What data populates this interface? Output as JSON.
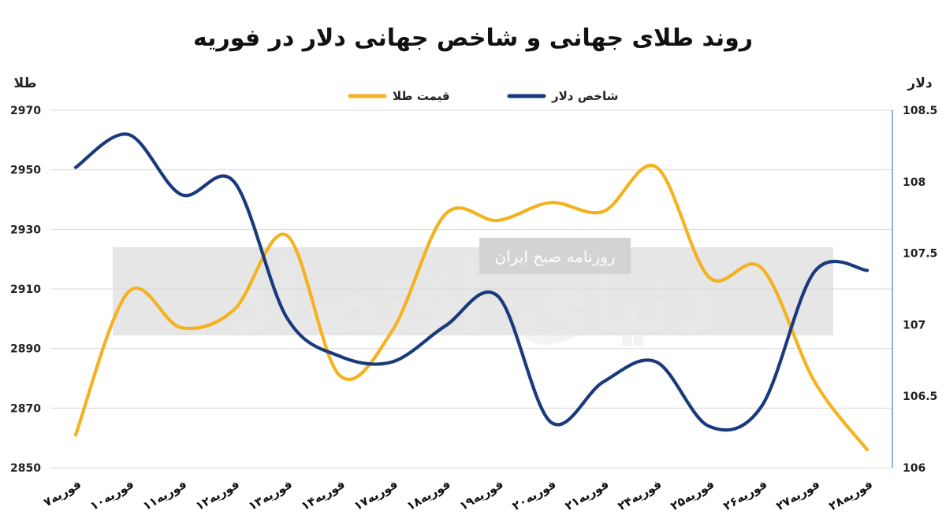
{
  "chart_data": {
    "type": "line",
    "title": "روند طلای جهانی و شاخص جهانی دلار در فوریه",
    "ylabel_left": "طلا",
    "ylabel_right": "دلار",
    "categories": [
      "۷فوریه",
      "۱۰فوریه",
      "۱۱فوریه",
      "۱۲فوریه",
      "۱۳فوریه",
      "۱۴فوریه",
      "۱۷فوریه",
      "۱۸فوریه",
      "۱۹فوریه",
      "۲۰فوریه",
      "۲۱فوریه",
      "۲۴فوریه",
      "۲۵فوریه",
      "۲۶فوریه",
      "۲۷فوریه",
      "۲۸فوریه"
    ],
    "y_left_ticks": [
      "2970",
      "2950",
      "2930",
      "2910",
      "2890",
      "2870",
      "2850"
    ],
    "y_right_ticks": [
      "108.5",
      "108",
      "107.5",
      "107",
      "106.5",
      "106"
    ],
    "y_left_range": [
      2850,
      2970
    ],
    "y_right_range": [
      106,
      108.5
    ],
    "grid": true,
    "legend_position": "top",
    "series": [
      {
        "name": "قیمت طلا",
        "axis": "left",
        "color": "#f5b21f",
        "values": [
          2861,
          2909,
          2897,
          2903,
          2928,
          2881,
          2896,
          2935,
          2933,
          2939,
          2936,
          2951,
          2914,
          2917,
          2879,
          2856
        ]
      },
      {
        "name": "شاخص دلار",
        "axis": "right",
        "color": "#1a3a7c",
        "values": [
          108.1,
          108.33,
          107.91,
          108.0,
          107.05,
          106.78,
          106.74,
          106.99,
          107.2,
          106.32,
          106.6,
          106.74,
          106.29,
          106.43,
          107.37,
          107.38
        ]
      }
    ],
    "watermark": "روزنامه صبح ایران"
  },
  "logo_text": "دنیای اقتصاد"
}
